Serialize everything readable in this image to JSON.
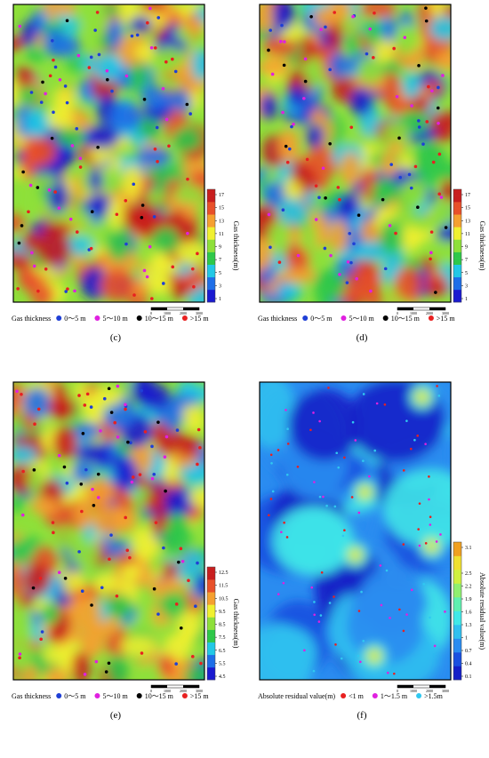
{
  "panels": [
    {
      "label": "(c)",
      "colorbar": {
        "title": "Gas thickness(m)",
        "ticks": [
          1,
          3,
          5,
          7,
          9,
          11,
          13,
          15,
          17
        ]
      },
      "colormap": [
        "#1a1ad0",
        "#1e6ee8",
        "#22c8e6",
        "#2ec84a",
        "#8ee03a",
        "#f0f030",
        "#f5a030",
        "#e8502a",
        "#c81e1e"
      ],
      "legend": {
        "title": "Gas thickness",
        "items": [
          {
            "label": "0～5 m",
            "color": "#1f3fd6"
          },
          {
            "label": "5～10 m",
            "color": "#e020e0"
          },
          {
            "label": "10～15 m",
            "color": "#000000"
          },
          {
            "label": ">15 m",
            "color": "#e82020"
          }
        ]
      },
      "scale_labels": [
        "0",
        "1000",
        "2000",
        "3000"
      ]
    },
    {
      "label": "(d)",
      "colorbar": {
        "title": "Gas thickness(m)",
        "ticks": [
          1,
          3,
          5,
          7,
          9,
          11,
          13,
          15,
          17
        ]
      },
      "colormap": [
        "#1a1ad0",
        "#1e6ee8",
        "#22c8e6",
        "#2ec84a",
        "#8ee03a",
        "#f0f030",
        "#f5a030",
        "#e8502a",
        "#c81e1e"
      ],
      "legend": {
        "title": "Gas thickness",
        "items": [
          {
            "label": "0～5 m",
            "color": "#1f3fd6"
          },
          {
            "label": "5～10 m",
            "color": "#e020e0"
          },
          {
            "label": "10～15 m",
            "color": "#000000"
          },
          {
            "label": ">15 m",
            "color": "#e82020"
          }
        ]
      },
      "scale_labels": [
        "0",
        "1000",
        "2000",
        "3000"
      ]
    },
    {
      "label": "(e)",
      "colorbar": {
        "title": "Gas thickness(m)",
        "ticks": [
          4.5,
          5.5,
          6.5,
          7.5,
          8.5,
          9.5,
          10.5,
          11.5,
          12.5
        ]
      },
      "colormap": [
        "#1a1ad0",
        "#1e6ee8",
        "#22c8e6",
        "#2ec84a",
        "#8ee03a",
        "#f0f030",
        "#f5a030",
        "#e8502a",
        "#c81e1e"
      ],
      "legend": {
        "title": "Gas thickness",
        "items": [
          {
            "label": "0～5 m",
            "color": "#1f3fd6"
          },
          {
            "label": "5～10 m",
            "color": "#e020e0"
          },
          {
            "label": "10～15 m",
            "color": "#000000"
          },
          {
            "label": ">15 m",
            "color": "#e82020"
          }
        ]
      },
      "scale_labels": [
        "0",
        "1000",
        "2000",
        "3000"
      ]
    },
    {
      "label": "(f)",
      "colorbar": {
        "title": "Absolute residual value(m)",
        "ticks": [
          0.1,
          0.4,
          0.7,
          1,
          1.3,
          1.6,
          1.9,
          2.2,
          2.5,
          3.1
        ]
      },
      "colormap": [
        "#1420c8",
        "#1a50e0",
        "#2a8cf0",
        "#30c0f0",
        "#40e8e8",
        "#60f0b0",
        "#90f070",
        "#d0f040",
        "#f0e030",
        "#f0a020"
      ],
      "legend": {
        "title": "Absolute residual value(m)",
        "items": [
          {
            "label": "<1 m",
            "color": "#e82020"
          },
          {
            "label": "1～1.5 m",
            "color": "#e020e0"
          },
          {
            "label": ">1.5m",
            "color": "#30c8f0"
          }
        ]
      },
      "scale_labels": [
        "0",
        "1000",
        "2000",
        "3000"
      ]
    }
  ]
}
